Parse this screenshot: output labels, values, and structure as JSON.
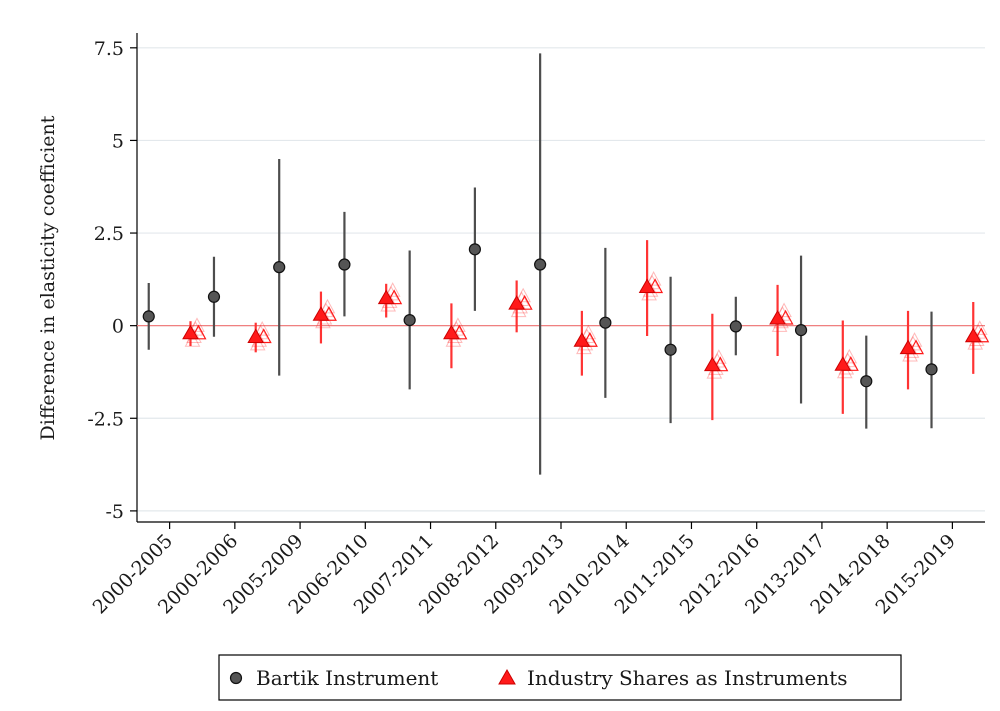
{
  "chart_data": {
    "type": "scatter",
    "title": "",
    "xlabel": "",
    "ylabel": "Difference in elasticity coefficient",
    "ylim": [
      -5.3,
      7.9
    ],
    "yticks": [
      {
        "value": 7.5,
        "label": "7.5"
      },
      {
        "value": 5,
        "label": "5"
      },
      {
        "value": 2.5,
        "label": "2.5"
      },
      {
        "value": 0,
        "label": "0"
      },
      {
        "value": -2.5,
        "label": "-2.5"
      },
      {
        "value": -5,
        "label": "-5"
      }
    ],
    "grid": true,
    "reference_line": 0,
    "categories": [
      "2000-2005",
      "2000-2006",
      "2005-2009",
      "2006-2010",
      "2007-2011",
      "2008-2012",
      "2009-2013",
      "2010-2014",
      "2011-2015",
      "2012-2016",
      "2013-2017",
      "2014-2018",
      "2015-2019"
    ],
    "legend_position": "bottom",
    "series": [
      {
        "name": "Bartik Instrument",
        "marker": "circle",
        "color": "#555555",
        "ci_color": "#4d4d4d",
        "values": [
          0.25,
          0.78,
          1.58,
          1.65,
          0.15,
          2.06,
          1.65,
          0.08,
          -0.65,
          -0.02,
          -0.12,
          -1.5,
          -1.18
        ],
        "ci_low": [
          -0.65,
          -0.3,
          -1.35,
          0.25,
          -1.72,
          0.4,
          -4.02,
          -1.95,
          -2.63,
          -0.8,
          -2.1,
          -2.78,
          -2.77
        ],
        "ci_high": [
          1.15,
          1.86,
          4.5,
          3.07,
          2.03,
          3.73,
          7.35,
          2.1,
          1.32,
          0.78,
          1.89,
          -0.27,
          0.38
        ]
      },
      {
        "name": "Industry Shares as Instruments",
        "marker": "triangle",
        "color": "#ff1a1a",
        "ci_color": "#ff3333",
        "values": [
          -0.22,
          -0.32,
          0.28,
          0.73,
          -0.22,
          0.58,
          -0.42,
          1.03,
          -1.08,
          0.18,
          -1.07,
          -0.62,
          -0.3
        ],
        "ci_low": [
          -0.55,
          -0.72,
          -0.48,
          0.22,
          -1.15,
          -0.18,
          -1.35,
          -0.28,
          -2.55,
          -0.82,
          -2.38,
          -1.72,
          -1.3
        ],
        "ci_high": [
          0.12,
          0.08,
          0.92,
          1.13,
          0.6,
          1.22,
          0.4,
          2.31,
          0.32,
          1.1,
          0.14,
          0.4,
          0.64
        ],
        "ghost_offsets": [
          -0.2,
          -0.1,
          0.1,
          0.2
        ]
      }
    ]
  },
  "colors": {
    "zero_line": "#f08080",
    "grid": "#e3e8ec",
    "axis": "#000000"
  }
}
